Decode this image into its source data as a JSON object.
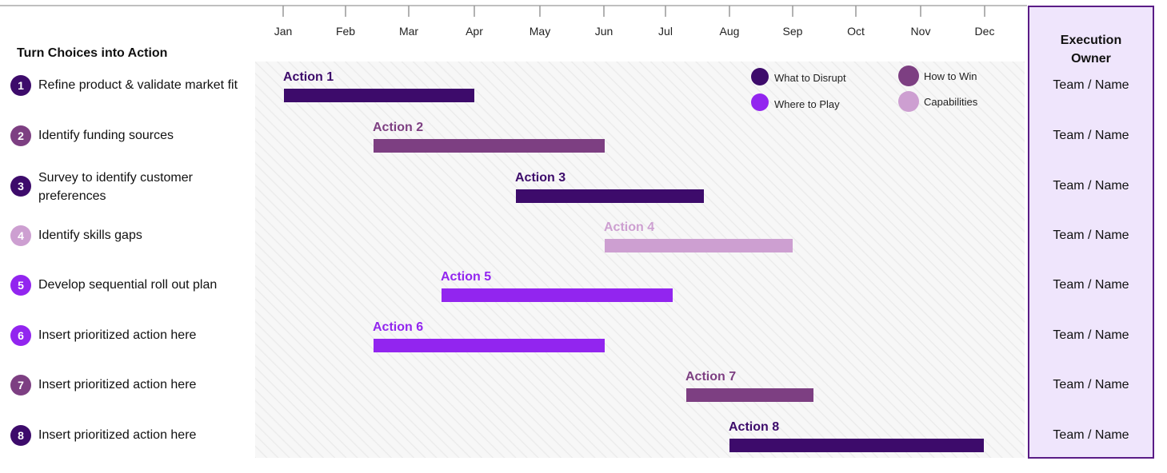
{
  "heading": "Turn Choices into Action",
  "owner_header": [
    "Execution",
    "Owner"
  ],
  "colors": {
    "what_to_disrupt": "#3d0b6b",
    "how_to_win": "#7d3f82",
    "where_to_play": "#9225ef",
    "capabilities": "#cd9fd1"
  },
  "rows": [
    {
      "num": "1",
      "text": "Refine product & validate market fit",
      "owner": "Team / Name"
    },
    {
      "num": "2",
      "text": "Identify funding sources",
      "owner": "Team / Name"
    },
    {
      "num": "3",
      "text": "Survey to identify customer preferences",
      "owner": "Team / Name"
    },
    {
      "num": "4",
      "text": "Identify skills gaps",
      "owner": "Team / Name"
    },
    {
      "num": "5",
      "text": "Develop sequential roll out plan",
      "owner": "Team / Name"
    },
    {
      "num": "6",
      "text": "Insert prioritized action here",
      "owner": "Team / Name"
    },
    {
      "num": "7",
      "text": "Insert prioritized action here",
      "owner": "Team / Name"
    },
    {
      "num": "8",
      "text": "Insert prioritized action here",
      "owner": "Team / Name"
    }
  ],
  "chart_data": {
    "type": "gantt",
    "months": [
      "Jan",
      "Feb",
      "Mar",
      "Apr",
      "May",
      "Jun",
      "Jul",
      "Aug",
      "Sep",
      "Oct",
      "Nov",
      "Dec"
    ],
    "legend": [
      {
        "label": "What to Disrupt",
        "category": "what_to_disrupt"
      },
      {
        "label": "Where to Play",
        "category": "where_to_play"
      },
      {
        "label": "How to Win",
        "category": "how_to_win"
      },
      {
        "label": "Capabilities",
        "category": "capabilities"
      }
    ],
    "tasks": [
      {
        "label": "Action 1",
        "start": "Jan",
        "end": "Apr",
        "category": "what_to_disrupt"
      },
      {
        "label": "Action 2",
        "start": "mid-Feb",
        "end": "Jun",
        "category": "how_to_win"
      },
      {
        "label": "Action 3",
        "start": "early May",
        "end": "mid-Jul",
        "category": "what_to_disrupt"
      },
      {
        "label": "Action 4",
        "start": "Jun",
        "end": "Sep",
        "category": "capabilities"
      },
      {
        "label": "Action 5",
        "start": "early Mar",
        "end": "Jul",
        "category": "where_to_play"
      },
      {
        "label": "Action 6",
        "start": "mid-Feb",
        "end": "Jun",
        "category": "where_to_play"
      },
      {
        "label": "Action 7",
        "start": "mid-Jul",
        "end": "early Sep",
        "category": "how_to_win"
      },
      {
        "label": "Action 8",
        "start": "Aug",
        "end": "Dec",
        "category": "what_to_disrupt"
      }
    ]
  }
}
